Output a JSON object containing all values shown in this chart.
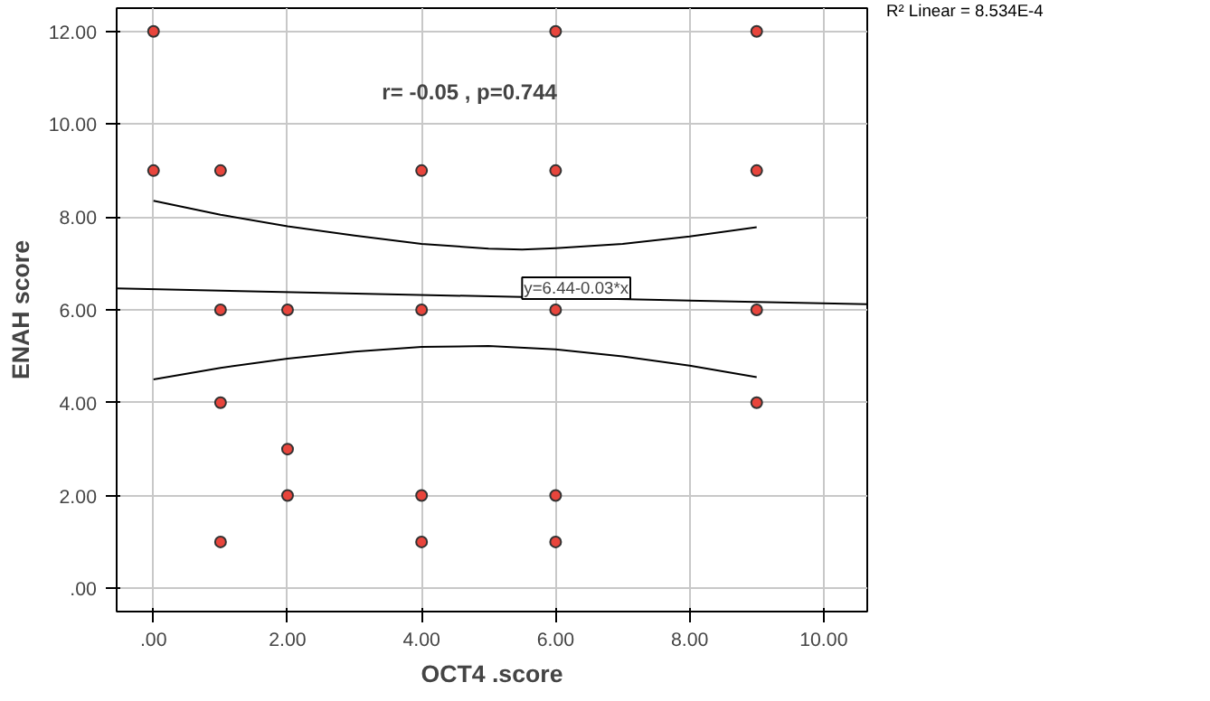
{
  "chart_data": {
    "type": "scatter",
    "xlabel": "OCT4 .score",
    "ylabel": "ENAH score",
    "xlim": [
      -0.55,
      10.65
    ],
    "ylim": [
      -0.5,
      12.5
    ],
    "xticks": [
      {
        "value": 0,
        "label": ".00"
      },
      {
        "value": 2,
        "label": "2.00"
      },
      {
        "value": 4,
        "label": "4.00"
      },
      {
        "value": 6,
        "label": "6.00"
      },
      {
        "value": 8,
        "label": "8.00"
      },
      {
        "value": 10,
        "label": "10.00"
      }
    ],
    "yticks": [
      {
        "value": 0,
        "label": ".00"
      },
      {
        "value": 2,
        "label": "2.00"
      },
      {
        "value": 4,
        "label": "4.00"
      },
      {
        "value": 6,
        "label": "6.00"
      },
      {
        "value": 8,
        "label": "8.00"
      },
      {
        "value": 10,
        "label": "10.00"
      },
      {
        "value": 12,
        "label": "12.00"
      }
    ],
    "grid": true,
    "series": [
      {
        "marker": "circle",
        "color": "#e8453c",
        "x": [
          0,
          0,
          1,
          1,
          1,
          1,
          2,
          2,
          2,
          4,
          4,
          4,
          4,
          6,
          6,
          6,
          6,
          6,
          9,
          9,
          9,
          9
        ],
        "values": [
          12,
          9,
          9,
          6,
          4,
          1,
          6,
          3,
          2,
          9,
          6,
          2,
          1,
          12,
          9,
          6,
          2,
          1,
          12,
          9,
          6,
          4
        ]
      },
      {
        "type": "line",
        "color": "#000000",
        "x": [
          -0.55,
          10.65
        ],
        "values": [
          6.46,
          6.12
        ]
      },
      {
        "type": "line",
        "color": "#000000",
        "x": [
          0,
          1,
          2,
          3,
          4,
          5,
          5.5,
          6,
          7,
          8,
          9
        ],
        "values": [
          8.35,
          8.05,
          7.8,
          7.6,
          7.42,
          7.32,
          7.3,
          7.33,
          7.42,
          7.58,
          7.78
        ]
      },
      {
        "type": "line",
        "color": "#000000",
        "x": [
          0,
          1,
          2,
          3,
          4,
          5,
          6,
          7,
          8,
          9
        ],
        "values": [
          4.5,
          4.75,
          4.95,
          5.1,
          5.2,
          5.22,
          5.15,
          5.0,
          4.8,
          4.55
        ]
      }
    ],
    "annotations": [
      "r= -0.05 , p=0.744",
      {
        "text": "y=6.44-0.03*x",
        "x": 5.5,
        "y": 6.35
      },
      "R² Linear = 8.534E-4"
    ]
  }
}
